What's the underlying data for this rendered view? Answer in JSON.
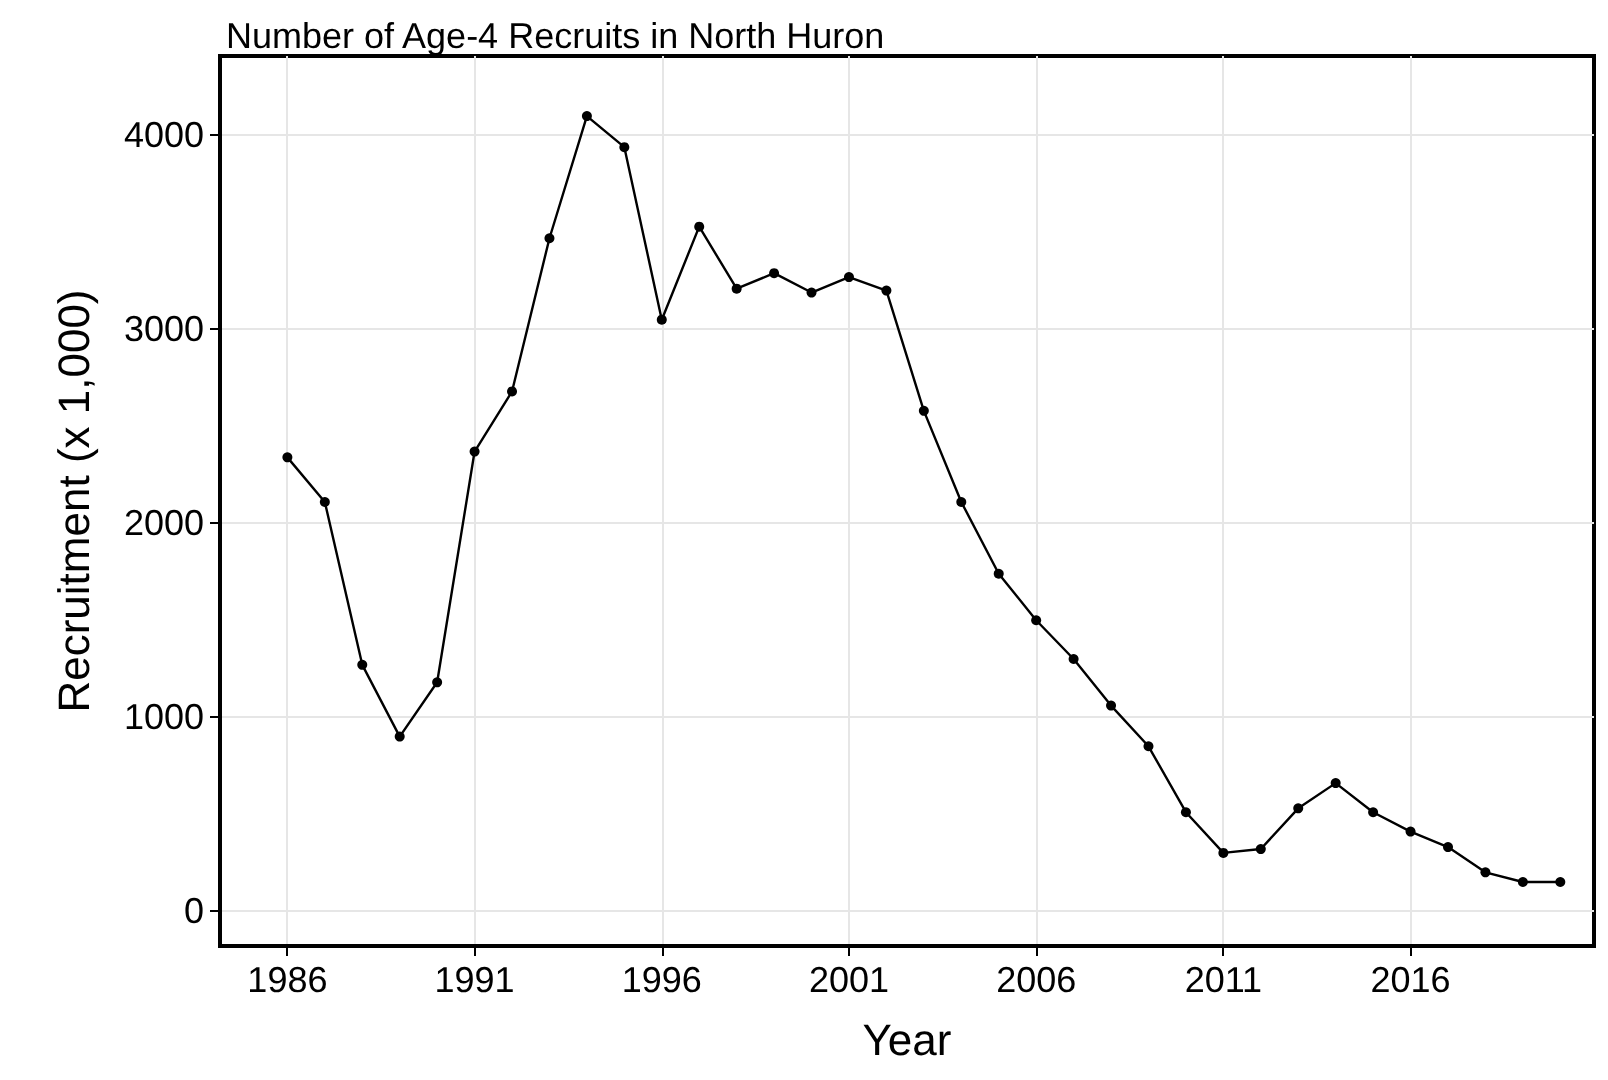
{
  "chart_data": {
    "type": "line",
    "title": "Number of Age-4 Recruits in North Huron",
    "xlabel": "Year",
    "ylabel": "Recruitment (x 1,000)",
    "x": [
      1986,
      1987,
      1988,
      1989,
      1990,
      1991,
      1992,
      1993,
      1994,
      1995,
      1996,
      1997,
      1998,
      1999,
      2000,
      2001,
      2002,
      2003,
      2004,
      2005,
      2006,
      2007,
      2008,
      2009,
      2010,
      2011,
      2012,
      2013,
      2014,
      2015,
      2016,
      2017,
      2018,
      2019,
      2020
    ],
    "series": [
      {
        "color": "#000000",
        "values": [
          2340,
          2110,
          1270,
          900,
          1180,
          2370,
          2680,
          3470,
          4100,
          3940,
          3050,
          3530,
          3210,
          3290,
          3190,
          3270,
          3200,
          2580,
          2110,
          1740,
          1500,
          1300,
          1060,
          850,
          510,
          300,
          320,
          530,
          660,
          510,
          410,
          330,
          200,
          150,
          150
        ]
      }
    ],
    "xlim": [
      1984.2,
      2020.9
    ],
    "xticks": [
      1986,
      1991,
      1996,
      2001,
      2006,
      2011,
      2016
    ],
    "ylim": [
      -180,
      4410
    ],
    "yticks": [
      0,
      1000,
      2000,
      3000,
      4000
    ],
    "grid": true,
    "marker": "circle",
    "line_style": "solid"
  }
}
